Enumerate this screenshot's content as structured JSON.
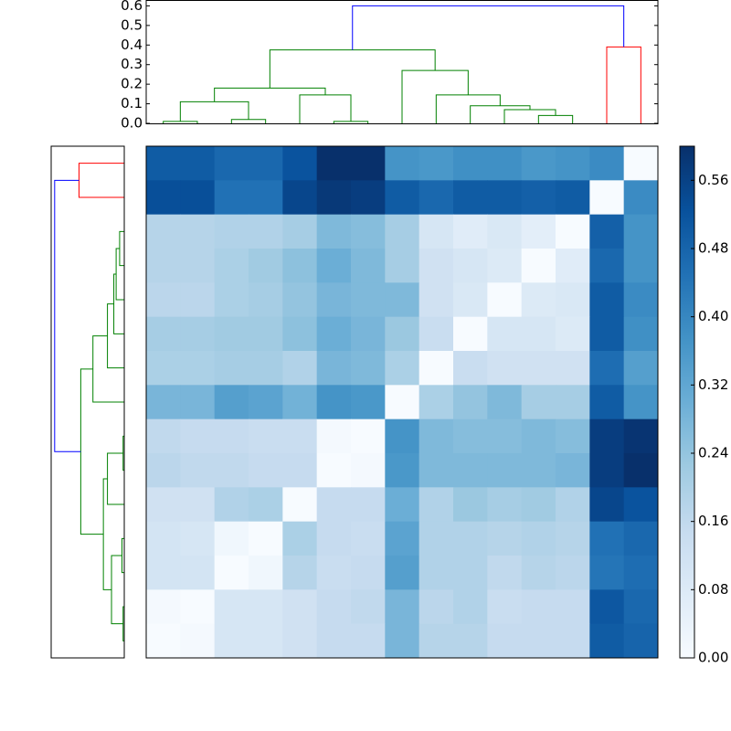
{
  "chart_data": {
    "type": "heatmap",
    "matrix": [
      [
        0.5,
        0.5,
        0.47,
        0.47,
        0.52,
        0.6,
        0.6,
        0.37,
        0.36,
        0.38,
        0.38,
        0.36,
        0.37,
        0.39,
        0.0
      ],
      [
        0.53,
        0.53,
        0.45,
        0.45,
        0.55,
        0.58,
        0.57,
        0.5,
        0.47,
        0.5,
        0.5,
        0.49,
        0.5,
        0.0,
        0.39
      ],
      [
        0.18,
        0.18,
        0.19,
        0.19,
        0.21,
        0.27,
        0.26,
        0.21,
        0.1,
        0.07,
        0.09,
        0.06,
        0.0,
        0.49,
        0.37
      ],
      [
        0.18,
        0.18,
        0.2,
        0.22,
        0.25,
        0.3,
        0.27,
        0.21,
        0.12,
        0.1,
        0.08,
        0.0,
        0.07,
        0.47,
        0.37
      ],
      [
        0.17,
        0.17,
        0.2,
        0.21,
        0.24,
        0.28,
        0.27,
        0.27,
        0.12,
        0.09,
        0.0,
        0.08,
        0.09,
        0.5,
        0.39
      ],
      [
        0.21,
        0.21,
        0.22,
        0.22,
        0.25,
        0.3,
        0.28,
        0.23,
        0.14,
        0.0,
        0.1,
        0.1,
        0.08,
        0.5,
        0.38
      ],
      [
        0.2,
        0.2,
        0.21,
        0.21,
        0.19,
        0.28,
        0.27,
        0.2,
        0.0,
        0.14,
        0.12,
        0.12,
        0.12,
        0.46,
        0.34
      ],
      [
        0.28,
        0.28,
        0.34,
        0.33,
        0.29,
        0.37,
        0.36,
        0.0,
        0.2,
        0.24,
        0.27,
        0.21,
        0.21,
        0.5,
        0.37
      ],
      [
        0.16,
        0.15,
        0.15,
        0.14,
        0.14,
        0.01,
        0.0,
        0.37,
        0.27,
        0.26,
        0.26,
        0.27,
        0.26,
        0.57,
        0.59
      ],
      [
        0.17,
        0.16,
        0.16,
        0.15,
        0.15,
        0.0,
        0.01,
        0.36,
        0.27,
        0.27,
        0.27,
        0.27,
        0.28,
        0.57,
        0.6
      ],
      [
        0.12,
        0.12,
        0.19,
        0.2,
        0.0,
        0.15,
        0.15,
        0.3,
        0.19,
        0.23,
        0.21,
        0.22,
        0.19,
        0.55,
        0.52
      ],
      [
        0.11,
        0.1,
        0.02,
        0.0,
        0.2,
        0.15,
        0.14,
        0.33,
        0.19,
        0.19,
        0.18,
        0.19,
        0.18,
        0.45,
        0.47
      ],
      [
        0.11,
        0.11,
        0.0,
        0.02,
        0.18,
        0.14,
        0.15,
        0.34,
        0.19,
        0.19,
        0.16,
        0.18,
        0.17,
        0.44,
        0.46
      ],
      [
        0.01,
        0.0,
        0.1,
        0.1,
        0.12,
        0.15,
        0.16,
        0.28,
        0.17,
        0.19,
        0.14,
        0.15,
        0.15,
        0.51,
        0.47
      ],
      [
        0.0,
        0.01,
        0.1,
        0.1,
        0.12,
        0.15,
        0.15,
        0.28,
        0.18,
        0.18,
        0.15,
        0.15,
        0.15,
        0.5,
        0.48
      ]
    ],
    "colormap": [
      "#f7fbff",
      "#deebf7",
      "#c6dbef",
      "#9ecae1",
      "#6baed6",
      "#4292c6",
      "#2171b5",
      "#08519c",
      "#08306b"
    ],
    "clim": [
      0,
      0.6
    ],
    "cbar_ticks": [
      {
        "value": 0,
        "label": "0.00"
      },
      {
        "value": 0.08,
        "label": "0.08"
      },
      {
        "value": 0.16,
        "label": "0.16"
      },
      {
        "value": 0.24,
        "label": "0.24"
      },
      {
        "value": 0.32,
        "label": "0.32"
      },
      {
        "value": 0.4,
        "label": "0.40"
      },
      {
        "value": 0.48,
        "label": "0.48"
      },
      {
        "value": 0.56,
        "label": "0.56"
      }
    ],
    "dendrogram": {
      "ylim": [
        0,
        0.63
      ],
      "yticks": [
        {
          "value": 0,
          "label": "0.0"
        },
        {
          "value": 0.1,
          "label": "0.1"
        },
        {
          "value": 0.2,
          "label": "0.2"
        },
        {
          "value": 0.3,
          "label": "0.3"
        },
        {
          "value": 0.4,
          "label": "0.4"
        },
        {
          "value": 0.5,
          "label": "0.5"
        },
        {
          "value": 0.6,
          "label": "0.6"
        }
      ],
      "links": [
        {
          "children": [
            0,
            1
          ],
          "height": 0.01,
          "color": "#008000"
        },
        {
          "children": [
            2,
            3
          ],
          "height": 0.02,
          "color": "#008000"
        },
        {
          "children": [
            5,
            6
          ],
          "height": 0.01,
          "color": "#008000"
        },
        {
          "children": [
            11,
            12
          ],
          "height": 0.04,
          "color": "#008000"
        },
        {
          "children": [
            10,
            18
          ],
          "height": 0.07,
          "color": "#008000"
        },
        {
          "children": [
            9,
            19
          ],
          "height": 0.09,
          "color": "#008000"
        },
        {
          "children": [
            15,
            16
          ],
          "height": 0.11,
          "color": "#008000"
        },
        {
          "children": [
            4,
            17
          ],
          "height": 0.145,
          "color": "#008000"
        },
        {
          "children": [
            8,
            20
          ],
          "height": 0.145,
          "color": "#008000"
        },
        {
          "children": [
            21,
            22
          ],
          "height": 0.18,
          "color": "#008000"
        },
        {
          "children": [
            7,
            23
          ],
          "height": 0.27,
          "color": "#008000"
        },
        {
          "children": [
            24,
            25
          ],
          "height": 0.375,
          "color": "#008000"
        },
        {
          "children": [
            13,
            14
          ],
          "height": 0.39,
          "color": "#ff0000"
        },
        {
          "children": [
            26,
            27
          ],
          "height": 0.6,
          "color": "#0000ff"
        }
      ]
    }
  }
}
